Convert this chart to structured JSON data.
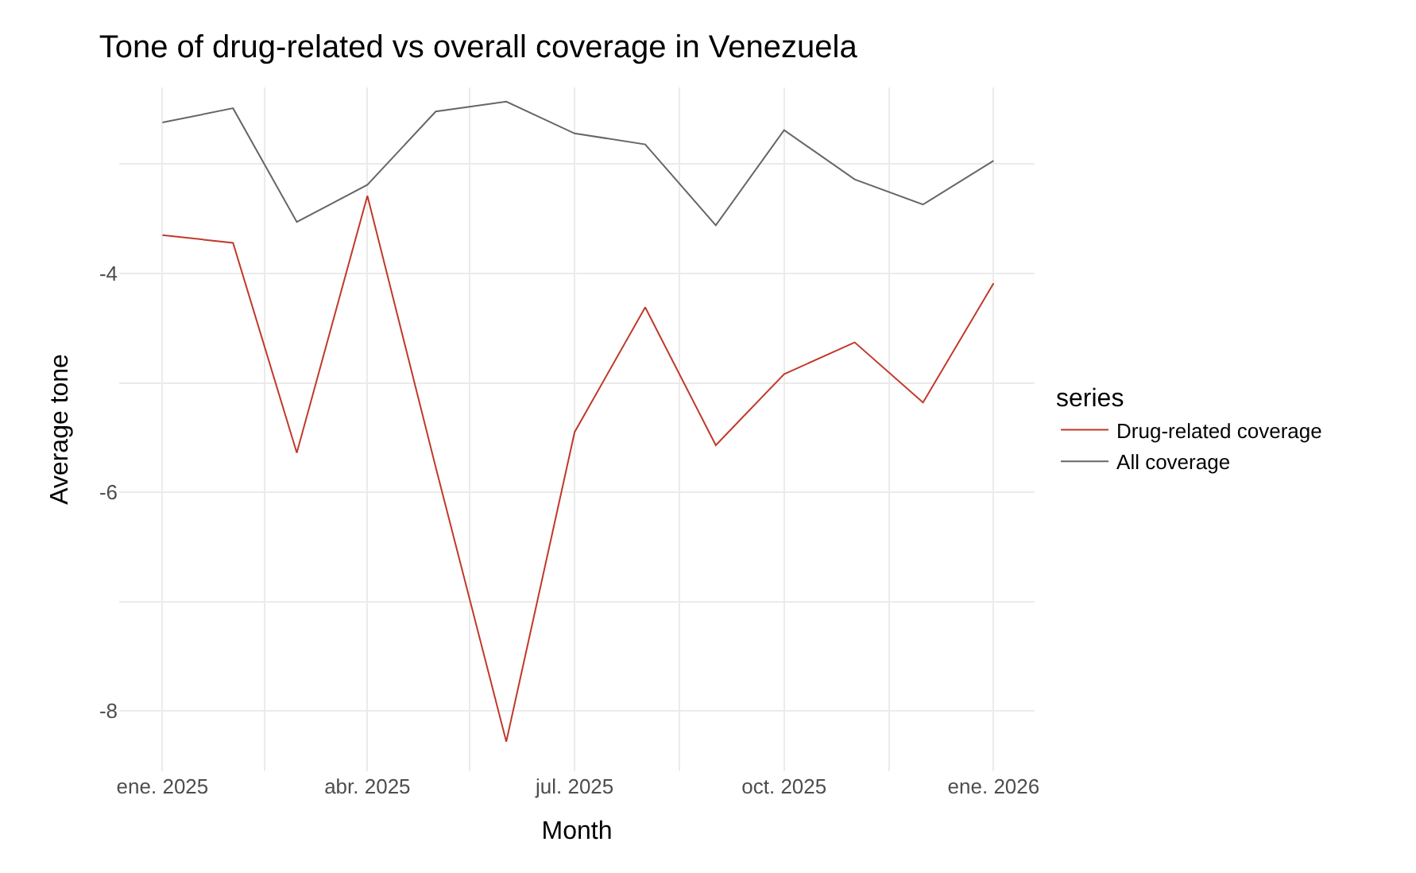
{
  "chart_data": {
    "type": "line",
    "title": "Tone of drug-related vs overall coverage in Venezuela",
    "xlabel": "Month",
    "ylabel": "Average tone",
    "legend_title": "series",
    "x": [
      "2025-01",
      "2025-02",
      "2025-03",
      "2025-04",
      "2025-05",
      "2025-06",
      "2025-07",
      "2025-08",
      "2025-09",
      "2025-10",
      "2025-11",
      "2025-12",
      "2026-01"
    ],
    "series": [
      {
        "name": "Drug-related coverage",
        "color": "#c0392b",
        "values": [
          -3.65,
          -3.72,
          -5.64,
          -3.29,
          -5.77,
          -8.28,
          -5.45,
          -4.31,
          -5.57,
          -4.92,
          -4.63,
          -5.18,
          -4.09
        ]
      },
      {
        "name": "All coverage",
        "color": "#666666",
        "values": [
          -2.62,
          -2.49,
          -3.53,
          -3.19,
          -2.52,
          -2.43,
          -2.72,
          -2.82,
          -3.56,
          -2.69,
          -3.14,
          -3.37,
          -2.97
        ]
      }
    ],
    "xlim": [
      "2024-12-13",
      "2026-01-19"
    ],
    "xticks": [
      {
        "value": "2025-01",
        "label": "ene. 2025"
      },
      {
        "value": "2025-02-15",
        "label": null
      },
      {
        "value": "2025-04",
        "label": "abr. 2025"
      },
      {
        "value": "2025-05-16",
        "label": null
      },
      {
        "value": "2025-07",
        "label": "jul. 2025"
      },
      {
        "value": "2025-08-16",
        "label": null
      },
      {
        "value": "2025-10",
        "label": "oct. 2025"
      },
      {
        "value": "2025-11-16",
        "label": null
      },
      {
        "value": "2026-01",
        "label": "ene. 2026"
      }
    ],
    "ylim": [
      -8.55,
      -2.3
    ],
    "yticks": [
      {
        "value": -8,
        "label": "-8"
      },
      {
        "value": -7,
        "label": null
      },
      {
        "value": -6,
        "label": "-6"
      },
      {
        "value": -5,
        "label": null
      },
      {
        "value": -4,
        "label": "-4"
      },
      {
        "value": -3,
        "label": null
      }
    ],
    "grid": true,
    "legend": "right",
    "marker": "none",
    "line_style": "solid"
  }
}
